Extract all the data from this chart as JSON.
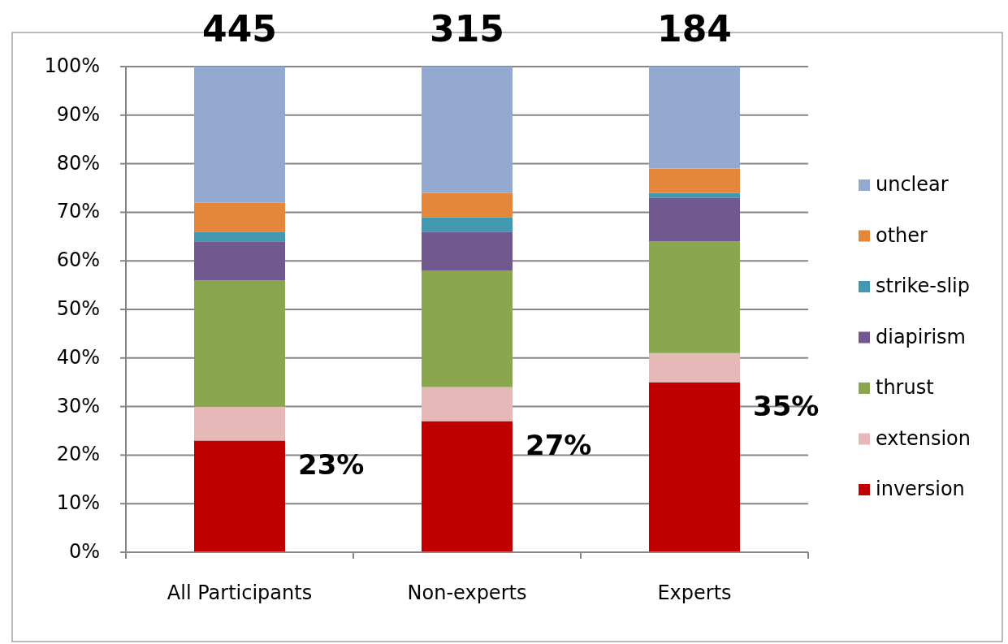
{
  "chart_data": {
    "type": "bar",
    "stacked": true,
    "categories": [
      "All Participants",
      "Non-experts",
      "Experts"
    ],
    "series": [
      {
        "name": "inversion",
        "color": "#c00000",
        "values": [
          23,
          27,
          35
        ]
      },
      {
        "name": "extension",
        "color": "#e6b9b8",
        "values": [
          7,
          7,
          6
        ]
      },
      {
        "name": "thrust",
        "color": "#8aa64f",
        "values": [
          26,
          24,
          23
        ]
      },
      {
        "name": "diapirism",
        "color": "#71588f",
        "values": [
          8,
          8,
          9
        ]
      },
      {
        "name": "strike-slip",
        "color": "#4198af",
        "values": [
          2,
          3,
          1
        ]
      },
      {
        "name": "other",
        "color": "#e5873a",
        "values": [
          6,
          5,
          5
        ]
      },
      {
        "name": "unclear",
        "color": "#93a9cf",
        "values": [
          28,
          26,
          21
        ]
      }
    ],
    "ylim": [
      0,
      100
    ],
    "yticks": [
      {
        "value": 0,
        "label": "0%"
      },
      {
        "value": 10,
        "label": "10%"
      },
      {
        "value": 20,
        "label": "20%"
      },
      {
        "value": 30,
        "label": "30%"
      },
      {
        "value": 40,
        "label": "40%"
      },
      {
        "value": 50,
        "label": "50%"
      },
      {
        "value": 60,
        "label": "60%"
      },
      {
        "value": 70,
        "label": "70%"
      },
      {
        "value": 80,
        "label": "80%"
      },
      {
        "value": 90,
        "label": "90%"
      },
      {
        "value": 100,
        "label": "100%"
      }
    ],
    "grid": "y",
    "legend": "right",
    "annotations": [
      {
        "text": "445",
        "x": "All Participants",
        "y": 100
      },
      {
        "text": "315",
        "x": "Non-experts",
        "y": 100
      },
      {
        "text": "184",
        "x": "Experts",
        "y": 100
      },
      {
        "text": "23%",
        "x": "All Participants",
        "y": 23
      },
      {
        "text": "27%",
        "x": "Non-experts",
        "y": 27
      },
      {
        "text": "35%",
        "x": "Experts",
        "y": 35
      }
    ]
  }
}
